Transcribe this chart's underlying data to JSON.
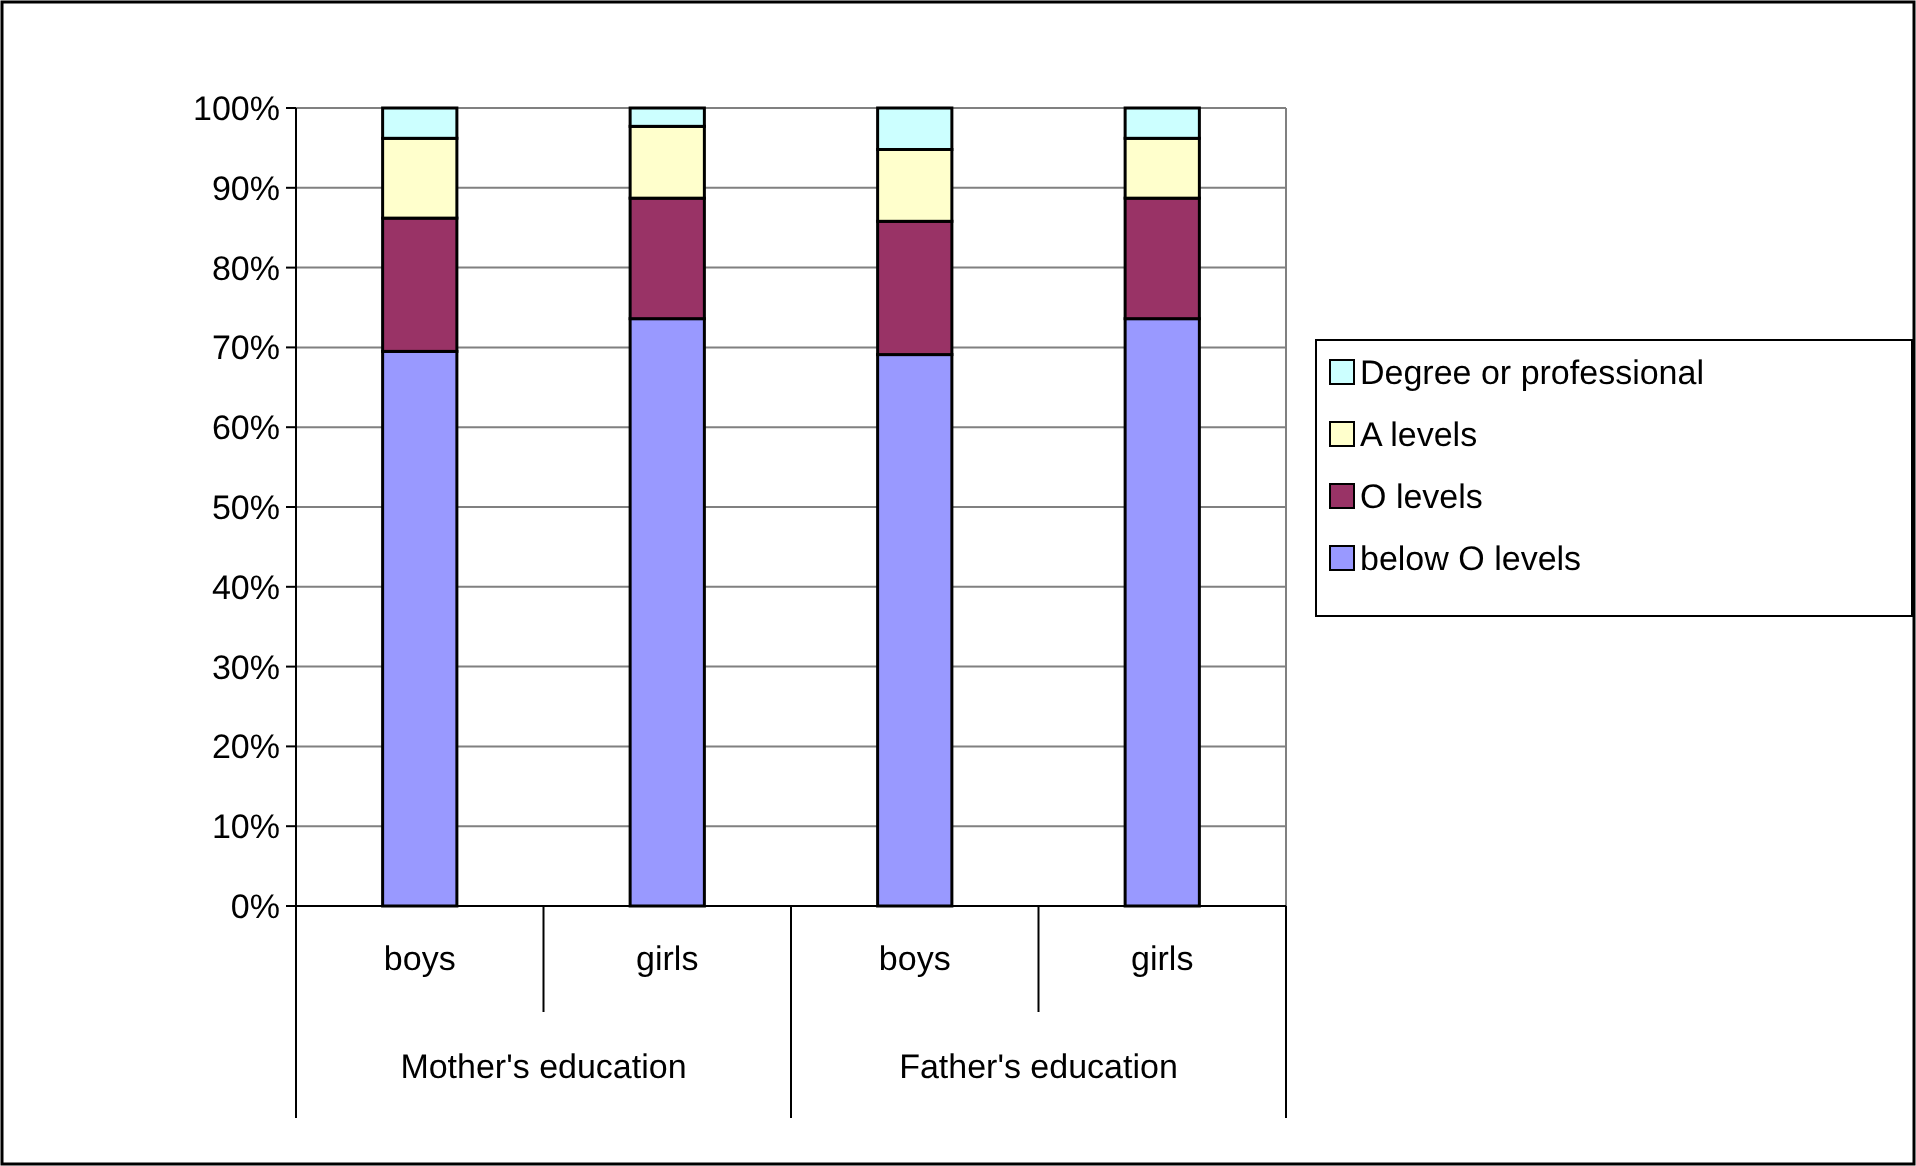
{
  "chart_data": {
    "type": "bar",
    "stacked": true,
    "categories": [
      "boys",
      "girls",
      "boys",
      "girls"
    ],
    "series": [
      {
        "name": "below O levels",
        "color": "#9999ff",
        "values": [
          69.5,
          73.6,
          69.1,
          73.6
        ]
      },
      {
        "name": "O levels",
        "color": "#993366",
        "values": [
          16.7,
          15.1,
          16.7,
          15.1
        ]
      },
      {
        "name": "A levels",
        "color": "#ffffcc",
        "values": [
          10.0,
          9.0,
          9.0,
          7.5
        ]
      },
      {
        "name": "Degree or professional",
        "color": "#ccffff",
        "values": [
          3.8,
          2.3,
          5.2,
          3.8
        ]
      }
    ],
    "ylim": [
      0,
      100
    ],
    "yticks": [
      {
        "value": 0,
        "label": "0%"
      },
      {
        "value": 10,
        "label": "10%"
      },
      {
        "value": 20,
        "label": "20%"
      },
      {
        "value": 30,
        "label": "30%"
      },
      {
        "value": 40,
        "label": "40%"
      },
      {
        "value": 50,
        "label": "50%"
      },
      {
        "value": 60,
        "label": "60%"
      },
      {
        "value": 70,
        "label": "70%"
      },
      {
        "value": 80,
        "label": "80%"
      },
      {
        "value": 90,
        "label": "90%"
      },
      {
        "value": 100,
        "label": "100%"
      }
    ],
    "grid": "y",
    "legend": "right",
    "annotations": [
      "Mother's education",
      "Father's education"
    ]
  }
}
